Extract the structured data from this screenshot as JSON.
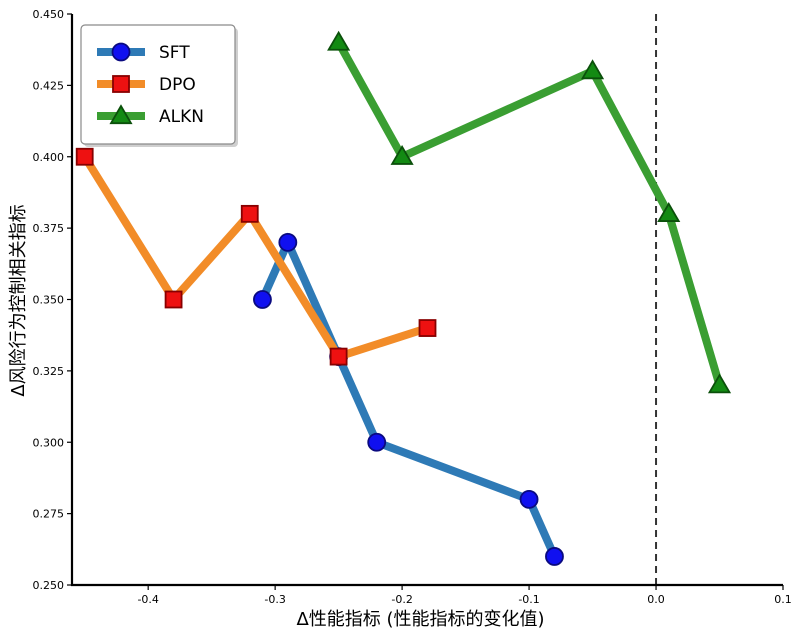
{
  "chart_data": {
    "type": "line",
    "title": "",
    "xlabel": "Δ性能指标 (性能指标的变化值)",
    "ylabel": "Δ风险行为控制相关指标",
    "xlim": [
      -0.46,
      0.1
    ],
    "ylim": [
      0.25,
      0.45
    ],
    "x_ticks": [
      -0.4,
      -0.3,
      -0.2,
      -0.1,
      0.0,
      0.1
    ],
    "x_tick_labels": [
      "-0.4",
      "-0.3",
      "-0.2",
      "-0.1",
      "0.0",
      "0.1"
    ],
    "y_ticks": [
      0.25,
      0.275,
      0.3,
      0.325,
      0.35,
      0.375,
      0.4,
      0.425,
      0.45
    ],
    "y_tick_labels": [
      "0.250",
      "0.275",
      "0.300",
      "0.325",
      "0.350",
      "0.375",
      "0.400",
      "0.425",
      "0.450"
    ],
    "grid": false,
    "legend_position": "top-left",
    "reference_line": {
      "x": 0.0,
      "style": "dashed",
      "color": "#333333"
    },
    "series": [
      {
        "name": "SFT",
        "marker": "circle",
        "line_color": "#2e7ab6",
        "marker_fill": "#1010f0",
        "marker_edge": "#0a0a80",
        "x": [
          -0.31,
          -0.29,
          -0.25,
          -0.22,
          -0.1,
          -0.08
        ],
        "y": [
          0.35,
          0.37,
          0.33,
          0.3,
          0.28,
          0.26
        ]
      },
      {
        "name": "DPO",
        "marker": "square",
        "line_color": "#f28c28",
        "marker_fill": "#ee1111",
        "marker_edge": "#880000",
        "x": [
          -0.45,
          -0.38,
          -0.32,
          -0.25,
          -0.18
        ],
        "y": [
          0.4,
          0.35,
          0.38,
          0.33,
          0.34
        ]
      },
      {
        "name": "ALKN",
        "marker": "triangle",
        "line_color": "#3a9e32",
        "marker_fill": "#138a13",
        "marker_edge": "#0b500b",
        "x": [
          -0.25,
          -0.2,
          -0.05,
          0.01,
          0.05
        ],
        "y": [
          0.44,
          0.4,
          0.43,
          0.38,
          0.32
        ]
      }
    ]
  }
}
